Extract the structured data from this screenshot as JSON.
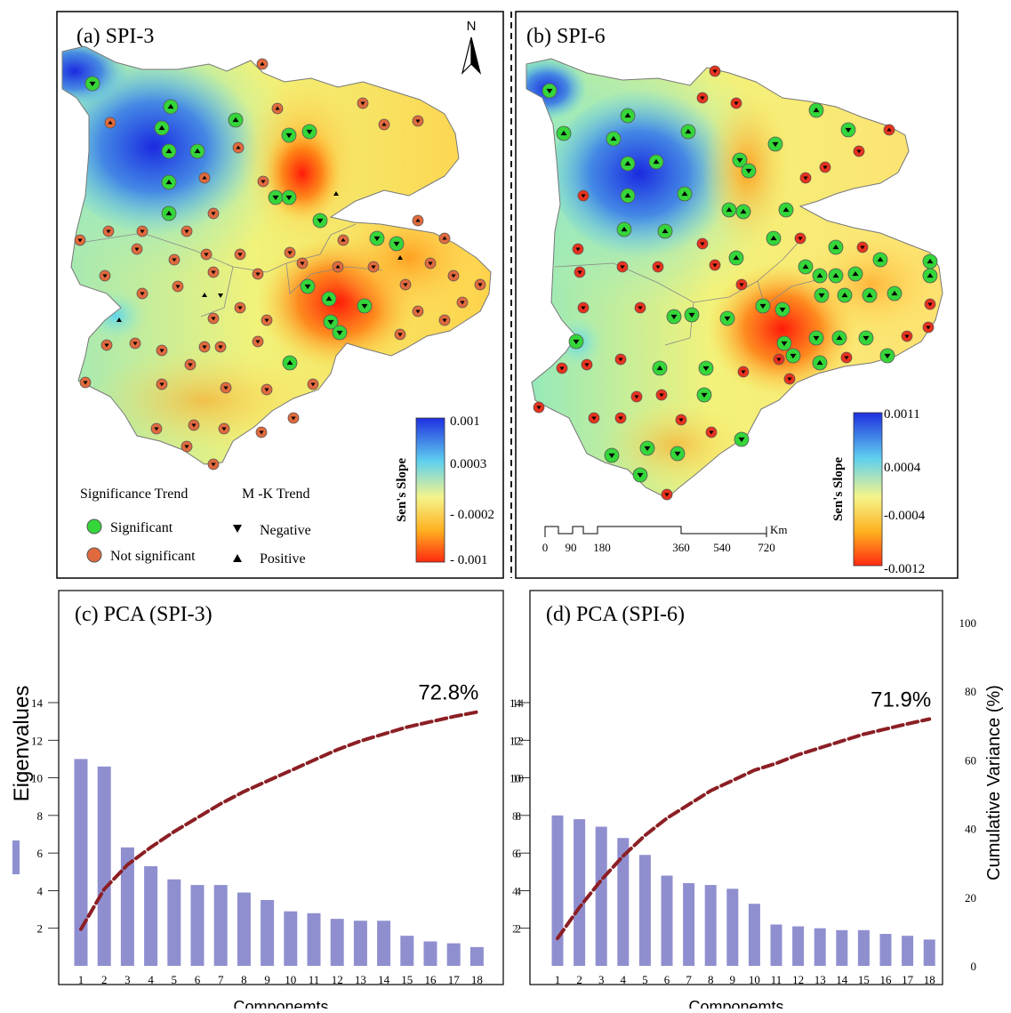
{
  "maps": [
    {
      "id": "a",
      "title": "(a) SPI-3",
      "north_label": "N",
      "legend": {
        "significance_title": "Significance Trend",
        "mk_title": "M -K Trend",
        "significant": "Significant",
        "not_significant": "Not significant",
        "negative": "Negative",
        "positive": "Positive"
      },
      "colorbar": {
        "title": "Sen's Slope",
        "labels": [
          "0.001",
          "0.0003",
          "- 0.0002",
          "- 0.001"
        ],
        "colors": [
          "#1f2fe0",
          "#5fd0ee",
          "#f4f48a",
          "#ffb020",
          "#ff2a10"
        ]
      }
    },
    {
      "id": "b",
      "title": "(b) SPI-6",
      "colorbar": {
        "title": "Sen's Slope",
        "labels": [
          "0.0011",
          "0.0004",
          "-0.0004",
          "-0.0012"
        ],
        "colors": [
          "#1f2fe0",
          "#5fd0ee",
          "#f4f48a",
          "#ffb020",
          "#ff2a10"
        ]
      },
      "scale_bar": {
        "labels": [
          "0",
          "90",
          "180",
          "360",
          "540",
          "720"
        ],
        "unit": "Km"
      }
    }
  ],
  "colors": {
    "significant": "#35d63a",
    "not_significant_a": "#e06a3e",
    "not_significant_b": "#e8321e",
    "bar": "#8f8fd0",
    "curve": "#8b1f24"
  },
  "chart_data": [
    {
      "type": "bar",
      "title": "(c) PCA (SPI-3)",
      "xlabel": "Componemts",
      "ylabel": "Eigenvalues",
      "categories": [
        "1",
        "2",
        "3",
        "4",
        "5",
        "6",
        "7",
        "8",
        "9",
        "10",
        "11",
        "12",
        "13",
        "14",
        "15",
        "16",
        "17",
        "18"
      ],
      "values": [
        11.0,
        10.6,
        6.3,
        5.3,
        4.6,
        4.3,
        4.3,
        3.9,
        3.5,
        2.9,
        2.8,
        2.5,
        2.4,
        2.4,
        1.6,
        1.3,
        1.2,
        1.0
      ],
      "ylim": [
        0,
        14
      ],
      "yticks": [
        "2",
        "4",
        "6",
        "8",
        "10",
        "12",
        "14"
      ],
      "cumulative": [
        10.5,
        22,
        29,
        34,
        38.5,
        42.5,
        46.5,
        50,
        53,
        56,
        59,
        62,
        64.5,
        66.5,
        68.5,
        70,
        71.5,
        72.8
      ],
      "annotation": "72.8%",
      "y2lim": [
        0,
        100
      ],
      "y2ticks": [
        "2",
        "4",
        "6",
        "8",
        "10",
        "12",
        "14"
      ]
    },
    {
      "type": "bar",
      "title": "(d) PCA (SPI-6)",
      "xlabel": "Componemts",
      "y2label": "Cumulative Variance (%)",
      "categories": [
        "1",
        "2",
        "3",
        "4",
        "5",
        "6",
        "7",
        "8",
        "9",
        "10",
        "11",
        "12",
        "13",
        "14",
        "15",
        "16",
        "17",
        "18"
      ],
      "values": [
        8.0,
        7.8,
        7.4,
        6.8,
        5.9,
        4.8,
        4.4,
        4.3,
        4.1,
        3.3,
        2.2,
        2.1,
        2.0,
        1.9,
        1.9,
        1.7,
        1.6,
        1.4
      ],
      "ylim": [
        0,
        14
      ],
      "yticks": [
        "2",
        "4",
        "6",
        "8",
        "10",
        "12",
        "14"
      ],
      "cumulative": [
        8,
        17,
        25,
        32,
        38,
        43,
        47,
        51,
        54,
        57,
        59,
        61.5,
        63.5,
        65.5,
        67.5,
        69,
        70.5,
        71.9
      ],
      "annotation": "71.9%",
      "y2lim": [
        0,
        100
      ],
      "y2ticks": [
        "0",
        "20",
        "40",
        "60",
        "80",
        "100"
      ]
    }
  ]
}
